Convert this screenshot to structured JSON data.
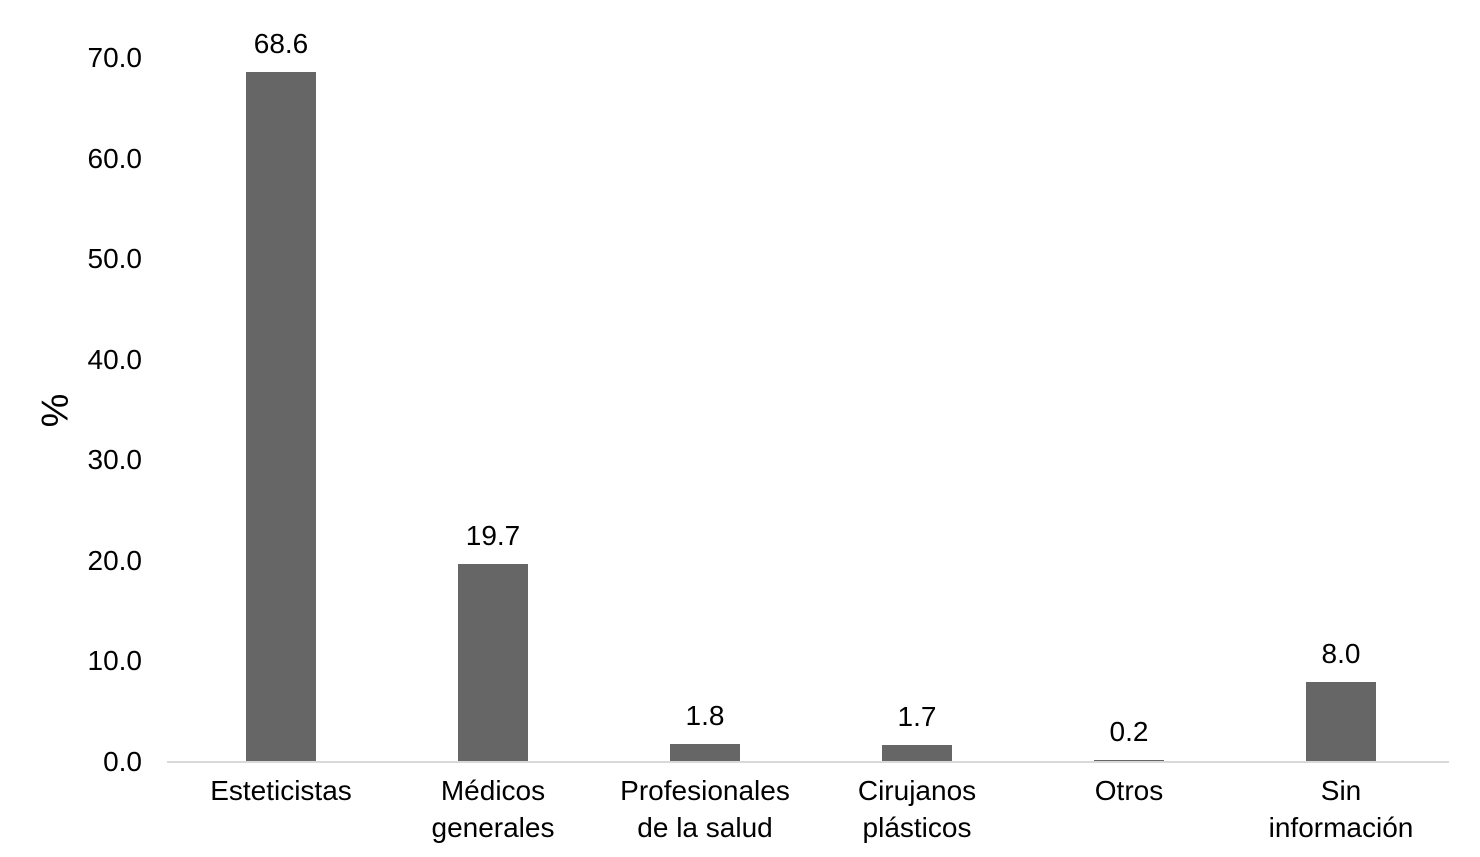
{
  "figure": {
    "background": "#ffffff"
  },
  "chart_data": {
    "type": "bar",
    "title": "",
    "categories": [
      "Esteticistas",
      "Médicos generales",
      "Profesionales de la salud",
      "Cirujanos plásticos",
      "Otros",
      "Sin información"
    ],
    "values": [
      68.6,
      19.7,
      1.8,
      1.7,
      0.2,
      8.0
    ],
    "value_labels": [
      "68.6",
      "19.7",
      "1.8",
      "1.7",
      "0.2",
      "8.0"
    ],
    "xlabel": "",
    "ylabel": "%",
    "ylim": [
      0,
      70
    ],
    "yticks": [
      {
        "value": 0,
        "label": "0.0"
      },
      {
        "value": 10,
        "label": "10.0"
      },
      {
        "value": 20,
        "label": "20.0"
      },
      {
        "value": 30,
        "label": "30.0"
      },
      {
        "value": 40,
        "label": "40.0"
      },
      {
        "value": 50,
        "label": "50.0"
      },
      {
        "value": 60,
        "label": "60.0"
      },
      {
        "value": 70,
        "label": "70.0"
      }
    ],
    "grid": false,
    "legend": "none",
    "bar_color": "#666666",
    "axis_line_color": "#d9d9d9",
    "text_color": "#000000"
  }
}
